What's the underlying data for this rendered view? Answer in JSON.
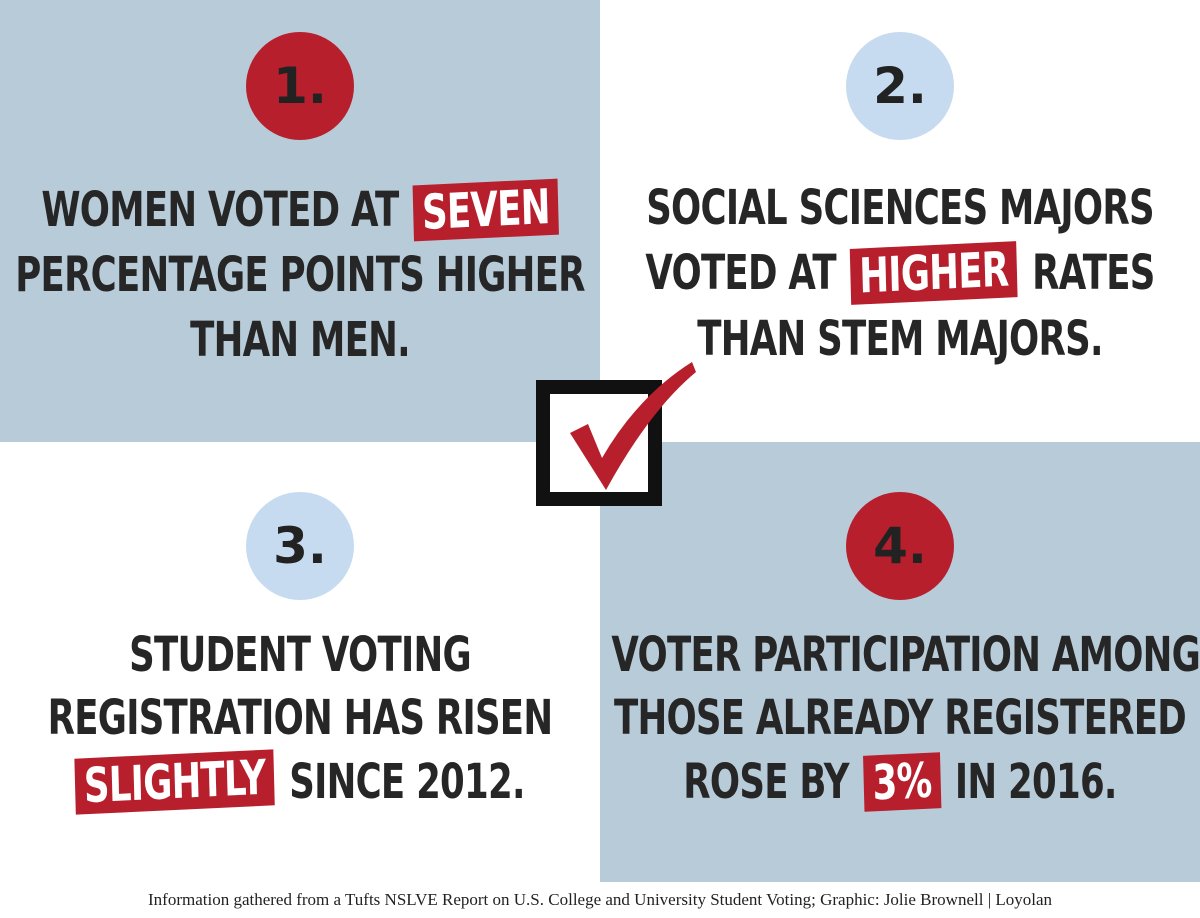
{
  "panels": [
    {
      "number": "1.",
      "circle_color": "#b81f2d",
      "background": "#b8cbd9",
      "lines": [
        [
          {
            "text": "WOMEN VOTED AT",
            "highlight": false
          },
          {
            "text": "SEVEN",
            "highlight": true
          }
        ],
        [
          {
            "text": "PERCENTAGE POINTS HIGHER",
            "highlight": false
          }
        ],
        [
          {
            "text": "THAN MEN.",
            "highlight": false
          }
        ]
      ]
    },
    {
      "number": "2.",
      "circle_color": "#c6dbf0",
      "background": "#ffffff",
      "lines": [
        [
          {
            "text": "SOCIAL SCIENCES MAJORS",
            "highlight": false
          }
        ],
        [
          {
            "text": "VOTED AT",
            "highlight": false
          },
          {
            "text": "HIGHER",
            "highlight": true
          },
          {
            "text": "RATES",
            "highlight": false
          }
        ],
        [
          {
            "text": "THAN STEM MAJORS.",
            "highlight": false
          }
        ]
      ]
    },
    {
      "number": "3.",
      "circle_color": "#c6dbf0",
      "background": "#ffffff",
      "lines": [
        [
          {
            "text": "STUDENT VOTING",
            "highlight": false
          }
        ],
        [
          {
            "text": "REGISTRATION HAS RISEN",
            "highlight": false
          }
        ],
        [
          {
            "text": "SLIGHTLY",
            "highlight": true
          },
          {
            "text": "SINCE 2012.",
            "highlight": false
          }
        ]
      ]
    },
    {
      "number": "4.",
      "circle_color": "#b81f2d",
      "background": "#b8cbd9",
      "lines": [
        [
          {
            "text": "VOTER PARTICIPATION AMONG",
            "highlight": false
          }
        ],
        [
          {
            "text": "THOSE ALREADY REGISTERED",
            "highlight": false
          }
        ],
        [
          {
            "text": "ROSE BY",
            "highlight": false
          },
          {
            "text": "3%",
            "highlight": true
          },
          {
            "text": "IN 2016.",
            "highlight": false
          }
        ]
      ]
    }
  ],
  "footer": "Information gathered from a Tufts NSLVE Report on U.S. College and University Student Voting; Graphic: Jolie Brownell | Loyolan"
}
